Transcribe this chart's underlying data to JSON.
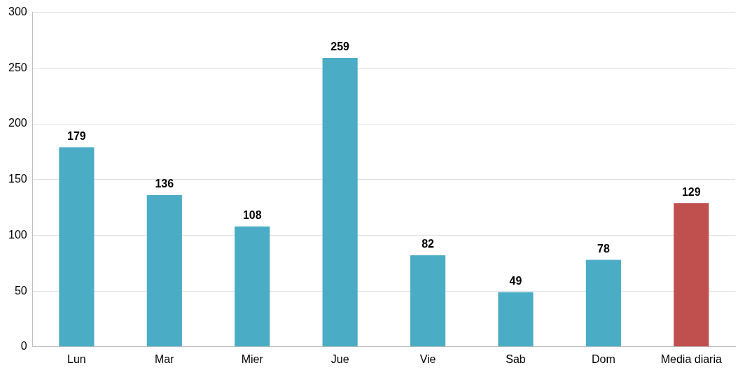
{
  "chart_data": {
    "type": "bar",
    "categories": [
      "Lun",
      "Mar",
      "Mier",
      "Jue",
      "Vie",
      "Sab",
      "Dom",
      "Media diaria"
    ],
    "values": [
      179,
      136,
      108,
      259,
      82,
      49,
      78,
      129
    ],
    "colors": [
      "#4bacc6",
      "#4bacc6",
      "#4bacc6",
      "#4bacc6",
      "#4bacc6",
      "#4bacc6",
      "#4bacc6",
      "#c0504d"
    ],
    "ylim": [
      0,
      300
    ],
    "yticks": [
      0,
      50,
      100,
      150,
      200,
      250,
      300
    ],
    "grid": "y",
    "data_labels": true,
    "legend": false
  }
}
